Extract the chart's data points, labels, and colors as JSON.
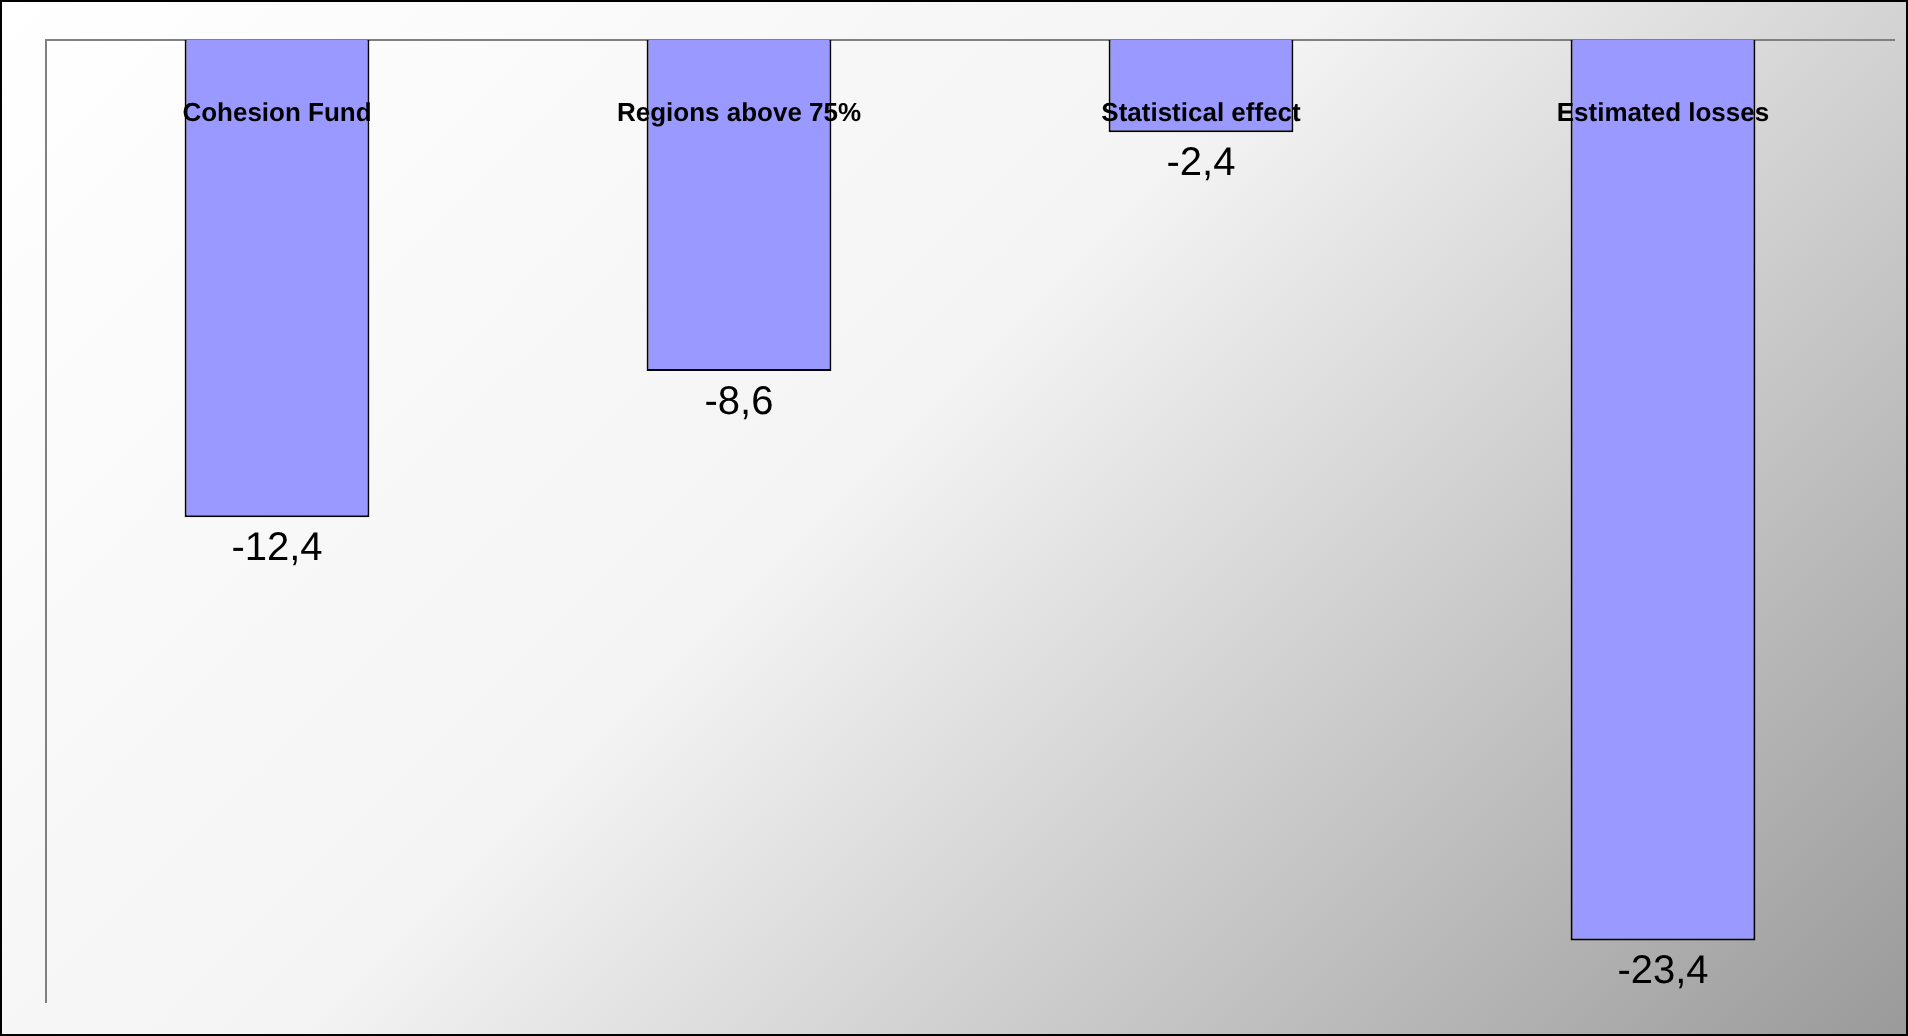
{
  "chart_data": {
    "type": "bar",
    "categories": [
      "Cohesion Fund",
      "Regions above 75%",
      "Statistical effect",
      "Estimated losses"
    ],
    "values": [
      -12.4,
      -8.6,
      -2.4,
      -23.4
    ],
    "value_labels": [
      "-12,4",
      "-8,6",
      "-2,4",
      "-23,4"
    ],
    "color": "#9999ff",
    "ylim": [
      -25,
      0
    ],
    "legend": false,
    "grid": false
  }
}
